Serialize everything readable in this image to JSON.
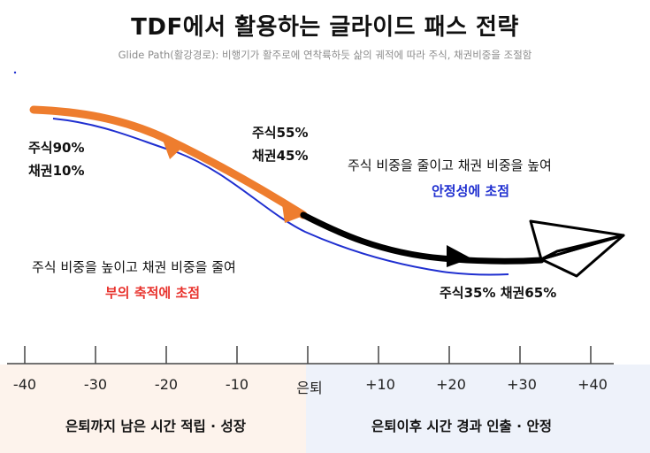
{
  "title": "TDF에서 활용하는 글라이드 패스 전략",
  "subtitle": "Glide Path(활강경로): 비행기가 활주로에 연착륙하듯 삶의 궤적에 따라 주식, 채권비중을 조절함",
  "labels": {
    "start_stock": "주식90%",
    "start_bond": "채권10%",
    "mid_stock": "주식55%",
    "mid_bond": "채권45%",
    "end_alloc": "주식35% 채권65%",
    "pre_desc": "주식 비중을 높이고 채권 비중을 줄여",
    "pre_goal": "부의 축적에 초점",
    "post_desc": "주식 비중을 줄이고 채권 비중을 높여",
    "post_goal": "안정성에 초점"
  },
  "axis": {
    "ticks": [
      "-40",
      "-30",
      "-20",
      "-10",
      "은퇴",
      "+10",
      "+20",
      "+30",
      "+40"
    ]
  },
  "phases": {
    "pre": "은퇴까지 남은 시간 적립 · 성장",
    "post": "은퇴이후 시간 경과 인출 · 안정"
  },
  "colors": {
    "pre_path": "#ee7d2e",
    "post_path": "#000000",
    "thin_line": "#1f2fd0",
    "accent_red": "#e8332d",
    "accent_blue": "#1f2fd0"
  }
}
